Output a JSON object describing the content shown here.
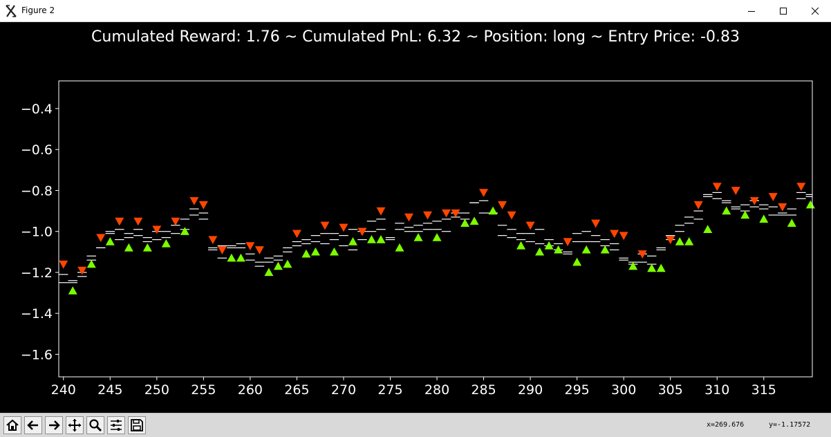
{
  "window": {
    "title": "Figure 2"
  },
  "toolbar": {
    "tools": [
      "home-icon",
      "back-icon",
      "forward-icon",
      "pan-icon",
      "zoom-icon",
      "configure-subplots-icon",
      "save-icon"
    ],
    "coord_x": "x=269.676",
    "coord_y": "y=-1.17572"
  },
  "chart_data": {
    "type": "scatter",
    "title": "Cumulated Reward: 1.76 ~ Cumulated PnL: 6.32 ~ Position: long ~ Entry Price: -0.83",
    "xlim": [
      239.5,
      320.2
    ],
    "ylim": [
      -1.71,
      -0.265
    ],
    "xticks": [
      240,
      245,
      250,
      255,
      260,
      265,
      270,
      275,
      280,
      285,
      290,
      295,
      300,
      305,
      310,
      315
    ],
    "yticks": [
      -0.4,
      -0.6,
      -0.8,
      -1.0,
      -1.2,
      -1.4,
      -1.6
    ],
    "ytick_labels": [
      "−0.4",
      "−0.6",
      "−0.8",
      "−1.0",
      "−1.2",
      "−1.4",
      "−1.6"
    ],
    "background": "#000000",
    "axis_color": "#ffffff",
    "sell_color": "#ff4500",
    "buy_color": "#7cfc00",
    "quotes": {
      "x": [
        240,
        241,
        242,
        243,
        244,
        245,
        246,
        247,
        248,
        249,
        250,
        251,
        252,
        253,
        254,
        255,
        256,
        257,
        258,
        259,
        260,
        261,
        262,
        263,
        264,
        265,
        266,
        267,
        268,
        269,
        270,
        271,
        272,
        273,
        274,
        275,
        276,
        277,
        278,
        279,
        280,
        281,
        282,
        283,
        284,
        285,
        286,
        287,
        288,
        289,
        290,
        291,
        292,
        293,
        294,
        295,
        296,
        297,
        298,
        299,
        300,
        301,
        302,
        303,
        304,
        305,
        306,
        307,
        308,
        309,
        310,
        311,
        312,
        313,
        314,
        315,
        316,
        317,
        318,
        319,
        320
      ],
      "ask": [
        -1.21,
        -1.24,
        -1.2,
        -1.12,
        -1.08,
        -1.0,
        -0.99,
        -1.01,
        -0.99,
        -1.03,
        -1.0,
        -1.0,
        -0.97,
        -0.94,
        -0.89,
        -0.91,
        -1.08,
        -1.07,
        -1.07,
        -1.06,
        -1.11,
        -1.15,
        -1.13,
        -1.12,
        -1.08,
        -1.05,
        -1.04,
        -1.02,
        -1.01,
        -1.01,
        -1.02,
        -0.99,
        -1.0,
        -0.95,
        -0.94,
        -1.03,
        -0.96,
        -0.98,
        -0.97,
        -0.96,
        -0.95,
        -0.94,
        -0.91,
        -0.91,
        -0.86,
        -0.85,
        -0.91,
        -0.97,
        -0.99,
        -1.01,
        -1.01,
        -0.99,
        -1.04,
        -1.06,
        -1.1,
        -1.01,
        -1.0,
        -1.02,
        -1.04,
        -1.06,
        -1.13,
        -1.15,
        -1.11,
        -1.12,
        -1.08,
        -1.02,
        -0.97,
        -0.93,
        -0.9,
        -0.82,
        -0.81,
        -0.85,
        -0.88,
        -0.87,
        -0.85,
        -0.87,
        -0.88,
        -0.91,
        -0.89,
        -0.81,
        -0.82
      ],
      "bid": [
        -1.25,
        -1.25,
        -1.22,
        -1.14,
        -1.08,
        -1.01,
        -1.04,
        -1.03,
        -1.02,
        -1.05,
        -1.04,
        -1.03,
        -1.01,
        -0.99,
        -0.92,
        -0.94,
        -1.09,
        -1.13,
        -1.08,
        -1.08,
        -1.14,
        -1.17,
        -1.15,
        -1.14,
        -1.1,
        -1.07,
        -1.06,
        -1.05,
        -1.06,
        -1.04,
        -1.07,
        -1.09,
        -1.04,
        -1.0,
        -0.99,
        -1.04,
        -0.99,
        -1.0,
        -1.0,
        -0.99,
        -0.99,
        -1.0,
        -0.93,
        -0.94,
        -0.86,
        -0.91,
        -0.91,
        -1.02,
        -1.03,
        -1.04,
        -1.05,
        -1.06,
        -1.07,
        -1.09,
        -1.11,
        -1.05,
        -1.05,
        -1.05,
        -1.07,
        -1.09,
        -1.14,
        -1.16,
        -1.15,
        -1.16,
        -1.09,
        -1.04,
        -1.0,
        -0.96,
        -0.94,
        -0.83,
        -0.84,
        -0.86,
        -0.89,
        -0.9,
        -0.88,
        -0.89,
        -0.92,
        -0.92,
        -0.92,
        -0.84,
        -0.83
      ]
    },
    "sell_signals": {
      "x": [
        240,
        242,
        244,
        246,
        248,
        250,
        252,
        254,
        255,
        256,
        257,
        260,
        261,
        265,
        268,
        270,
        272,
        274,
        277,
        279,
        281,
        282,
        285,
        287,
        288,
        290,
        294,
        297,
        299,
        300,
        302,
        305,
        308,
        310,
        312,
        314,
        316,
        317,
        319
      ],
      "y": [
        -1.16,
        -1.19,
        -1.03,
        -0.95,
        -0.95,
        -0.99,
        -0.95,
        -0.85,
        -0.87,
        -1.04,
        -1.09,
        -1.07,
        -1.09,
        -1.01,
        -0.97,
        -0.98,
        -1.0,
        -0.9,
        -0.93,
        -0.92,
        -0.91,
        -0.91,
        -0.81,
        -0.87,
        -0.92,
        -0.97,
        -1.05,
        -0.96,
        -1.01,
        -1.02,
        -1.11,
        -1.04,
        -0.87,
        -0.78,
        -0.8,
        -0.85,
        -0.83,
        -0.88,
        -0.78
      ]
    },
    "buy_signals": {
      "x": [
        241,
        243,
        245,
        247,
        249,
        251,
        253,
        258,
        259,
        262,
        263,
        264,
        266,
        267,
        269,
        271,
        273,
        274,
        276,
        278,
        280,
        283,
        284,
        286,
        289,
        291,
        292,
        293,
        295,
        296,
        298,
        301,
        303,
        304,
        306,
        307,
        309,
        311,
        313,
        315,
        318,
        320,
        321
      ],
      "y": [
        -1.29,
        -1.16,
        -1.05,
        -1.08,
        -1.08,
        -1.06,
        -1.0,
        -1.13,
        -1.13,
        -1.2,
        -1.17,
        -1.16,
        -1.11,
        -1.1,
        -1.1,
        -1.05,
        -1.04,
        -1.04,
        -1.08,
        -1.03,
        -1.03,
        -0.96,
        -0.95,
        -0.9,
        -1.07,
        -1.1,
        -1.07,
        -1.09,
        -1.15,
        -1.09,
        -1.09,
        -1.17,
        -1.18,
        -1.18,
        -1.05,
        -1.05,
        -0.99,
        -0.9,
        -0.92,
        -0.94,
        -0.96,
        -0.87,
        -0.87
      ]
    }
  }
}
